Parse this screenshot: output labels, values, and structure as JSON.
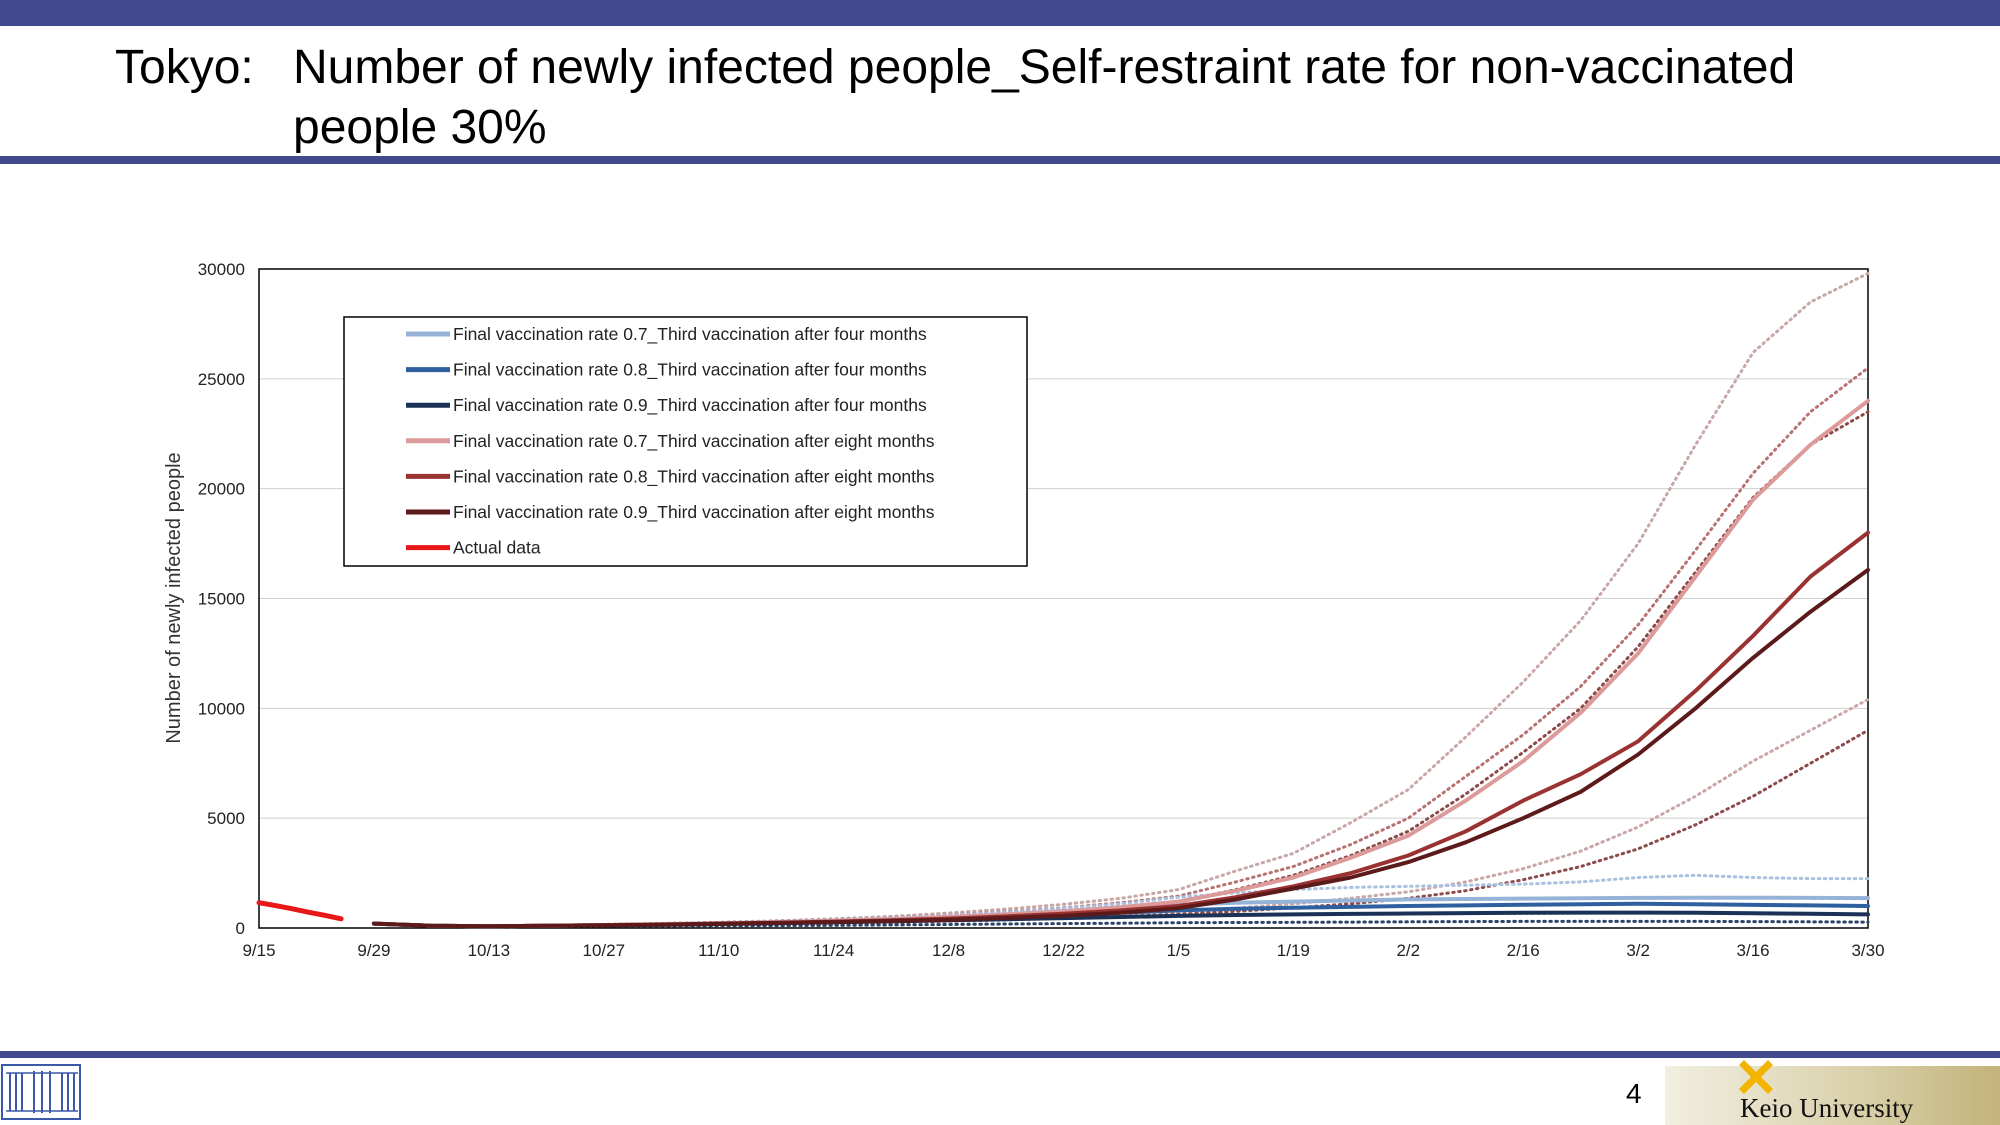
{
  "slide": {
    "title_prefix": "Tokyo:",
    "title": "Number of newly infected people_Self-restraint rate for non-vaccinated people 30%",
    "page_number": "4",
    "institution": "Keio University"
  },
  "chart_data": {
    "type": "line",
    "title": "",
    "xlabel": "",
    "ylabel": "Number of newly infected people",
    "x_tick_labels": [
      "9/15",
      "9/29",
      "10/13",
      "10/27",
      "11/10",
      "11/24",
      "12/8",
      "12/22",
      "1/5",
      "1/19",
      "2/2",
      "2/16",
      "3/2",
      "3/16",
      "3/30"
    ],
    "y_tick_labels": [
      "0",
      "5000",
      "10000",
      "15000",
      "20000",
      "25000",
      "30000"
    ],
    "x_range_days_from_9_15": [
      0,
      196
    ],
    "ylim": [
      0,
      30000
    ],
    "grid": "horizontal",
    "legend_position": "top-left, inside plot",
    "x": [
      "9/15",
      "9/22",
      "9/29",
      "10/6",
      "10/13",
      "10/20",
      "10/27",
      "11/3",
      "11/10",
      "11/17",
      "11/24",
      "12/1",
      "12/8",
      "12/15",
      "12/22",
      "12/29",
      "1/5",
      "1/12",
      "1/19",
      "1/26",
      "2/2",
      "2/9",
      "2/16",
      "2/23",
      "3/2",
      "3/9",
      "3/16",
      "3/23",
      "3/30"
    ],
    "series": [
      {
        "name": "Final vaccination rate 0.7_Third vaccination after four months",
        "color": "#95b3d7",
        "style": "solid",
        "values": [
          null,
          null,
          200,
          100,
          80,
          100,
          130,
          170,
          210,
          260,
          320,
          400,
          500,
          620,
          760,
          900,
          1050,
          1150,
          1200,
          1250,
          1300,
          1320,
          1340,
          1350,
          1370,
          1380,
          1380,
          1370,
          1360
        ]
      },
      {
        "name": "Final vaccination rate 0.8_Third vaccination after four months",
        "color": "#2e5f9e",
        "style": "solid",
        "values": [
          null,
          null,
          200,
          100,
          80,
          100,
          130,
          160,
          200,
          240,
          290,
          350,
          420,
          500,
          600,
          700,
          800,
          880,
          920,
          960,
          1000,
          1030,
          1060,
          1080,
          1100,
          1080,
          1050,
          1030,
          1000
        ]
      },
      {
        "name": "Final vaccination rate 0.9_Third vaccination after four months",
        "color": "#1b3256",
        "style": "solid",
        "values": [
          null,
          null,
          200,
          100,
          80,
          100,
          120,
          150,
          180,
          220,
          260,
          300,
          350,
          400,
          450,
          500,
          550,
          590,
          620,
          640,
          660,
          680,
          690,
          700,
          700,
          690,
          670,
          650,
          620
        ]
      },
      {
        "name": "Final vaccination rate 0.7_Third vaccination after eight months",
        "color": "#dc9a9a",
        "style": "solid",
        "values": [
          null,
          null,
          200,
          100,
          80,
          100,
          130,
          170,
          210,
          260,
          320,
          400,
          500,
          620,
          760,
          950,
          1200,
          1700,
          2300,
          3200,
          4200,
          5800,
          7600,
          9800,
          12500,
          16000,
          19500,
          22000,
          24000
        ]
      },
      {
        "name": "Final vaccination rate 0.8_Third vaccination after eight months",
        "color": "#9b3232",
        "style": "solid",
        "values": [
          null,
          null,
          200,
          100,
          80,
          100,
          130,
          160,
          200,
          240,
          290,
          350,
          430,
          530,
          650,
          800,
          1000,
          1400,
          1900,
          2500,
          3300,
          4400,
          5800,
          7000,
          8500,
          10800,
          13300,
          16000,
          18000
        ]
      },
      {
        "name": "Final vaccination rate 0.9_Third vaccination after eight months",
        "color": "#5c1a1a",
        "style": "solid",
        "values": [
          null,
          null,
          200,
          100,
          80,
          100,
          120,
          150,
          190,
          230,
          270,
          320,
          380,
          460,
          560,
          700,
          900,
          1300,
          1800,
          2300,
          3000,
          3900,
          5000,
          6200,
          7900,
          10000,
          12300,
          14400,
          16300
        ]
      },
      {
        "name": "Actual data",
        "color": "#e81818",
        "style": "solid",
        "x": [
          "9/15",
          "9/17",
          "9/19",
          "9/21",
          "9/23",
          "9/25"
        ],
        "values": [
          1150,
          1020,
          880,
          720,
          580,
          420
        ]
      },
      {
        "name": "",
        "color": "#c9a7a7",
        "style": "dotted",
        "role": "uncertainty-band",
        "values": [
          null,
          null,
          200,
          100,
          90,
          120,
          160,
          210,
          260,
          330,
          420,
          530,
          680,
          860,
          1080,
          1350,
          1750,
          2600,
          3400,
          4800,
          6300,
          8700,
          11200,
          14000,
          17500,
          22000,
          26200,
          28500,
          29800
        ]
      },
      {
        "name": "",
        "color": "#b77272",
        "style": "dotted",
        "role": "uncertainty-band",
        "values": [
          null,
          null,
          200,
          100,
          90,
          120,
          160,
          200,
          250,
          310,
          380,
          470,
          590,
          740,
          920,
          1150,
          1450,
          2100,
          2800,
          3800,
          5000,
          6900,
          8800,
          11000,
          13800,
          17200,
          20700,
          23500,
          25500
        ]
      },
      {
        "name": "",
        "color": "#8c4a4a",
        "style": "dotted",
        "role": "uncertainty-band",
        "values": [
          null,
          null,
          200,
          100,
          90,
          110,
          150,
          190,
          230,
          280,
          340,
          410,
          500,
          620,
          770,
          960,
          1200,
          1750,
          2400,
          3300,
          4400,
          6100,
          8000,
          10000,
          12800,
          16200,
          19600,
          22000,
          23500
        ]
      },
      {
        "name": "",
        "color": "#c9a7a7",
        "style": "dotted",
        "role": "uncertainty-band",
        "values": [
          null,
          null,
          200,
          100,
          80,
          90,
          110,
          140,
          170,
          200,
          240,
          290,
          350,
          420,
          500,
          600,
          720,
          900,
          1100,
          1350,
          1650,
          2100,
          2700,
          3500,
          4600,
          6000,
          7600,
          9000,
          10400
        ]
      },
      {
        "name": "",
        "color": "#8c4a4a",
        "style": "dotted",
        "role": "uncertainty-band",
        "values": [
          null,
          null,
          200,
          100,
          80,
          90,
          110,
          130,
          160,
          190,
          220,
          260,
          310,
          370,
          440,
          520,
          620,
          760,
          920,
          1100,
          1350,
          1700,
          2200,
          2800,
          3600,
          4700,
          6000,
          7500,
          9000
        ]
      },
      {
        "name": "",
        "color": "#a9c1e0",
        "style": "dotted",
        "role": "uncertainty-band",
        "values": [
          null,
          null,
          200,
          100,
          90,
          110,
          150,
          190,
          240,
          300,
          370,
          460,
          580,
          720,
          900,
          1100,
          1400,
          1600,
          1750,
          1850,
          1900,
          1950,
          2000,
          2100,
          2300,
          2400,
          2300,
          2250,
          2250
        ]
      },
      {
        "name": "",
        "color": "#6b88b0",
        "style": "dotted",
        "role": "uncertainty-band",
        "values": [
          null,
          null,
          200,
          100,
          80,
          90,
          110,
          140,
          170,
          200,
          240,
          280,
          330,
          380,
          440,
          500,
          560,
          600,
          620,
          640,
          650,
          660,
          670,
          680,
          690,
          680,
          660,
          630,
          600
        ]
      },
      {
        "name": "",
        "color": "#2e4466",
        "style": "dotted",
        "role": "uncertainty-band",
        "values": [
          null,
          null,
          200,
          100,
          70,
          70,
          80,
          90,
          100,
          110,
          120,
          140,
          160,
          180,
          200,
          220,
          240,
          250,
          260,
          270,
          280,
          290,
          300,
          300,
          300,
          300,
          290,
          280,
          270
        ]
      }
    ]
  }
}
